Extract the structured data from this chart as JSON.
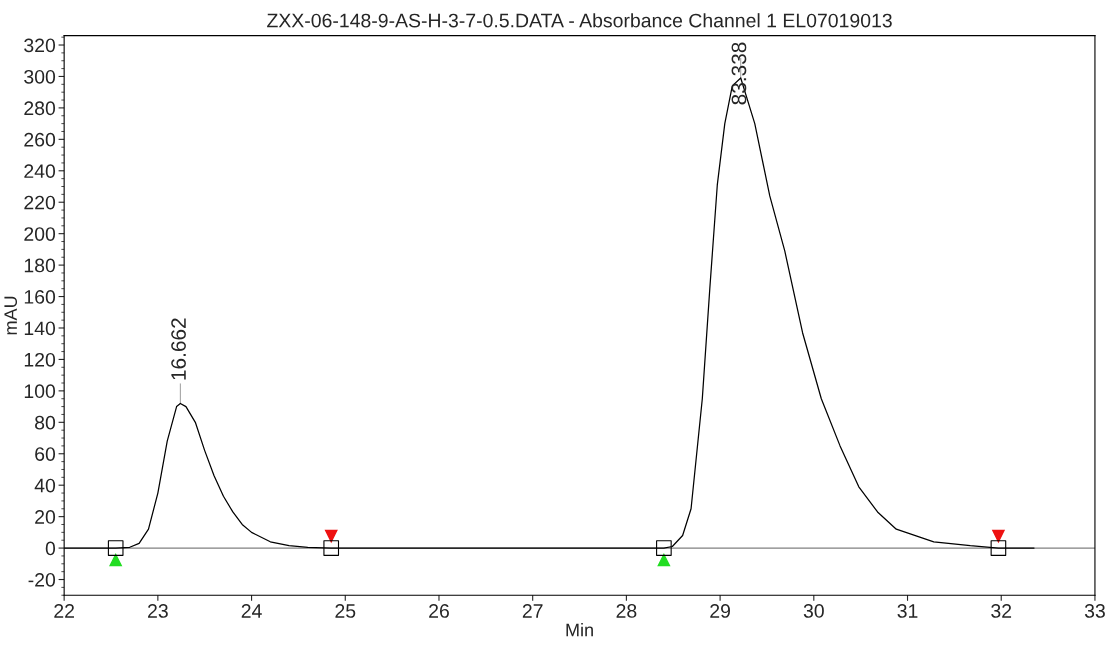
{
  "chart_data": {
    "type": "line",
    "title": "ZXX-06-148-9-AS-H-3-7-0.5.DATA - Absorbance Channel 1 EL07019013",
    "xlabel": "Min",
    "ylabel": "mAU",
    "xlim": [
      22,
      33
    ],
    "xticks": [
      22,
      23,
      24,
      25,
      26,
      27,
      28,
      29,
      30,
      31,
      32,
      33
    ],
    "ylim": [
      -30,
      326
    ],
    "yticks": [
      -20,
      0,
      20,
      40,
      60,
      80,
      100,
      120,
      140,
      160,
      180,
      200,
      220,
      240,
      260,
      280,
      300,
      320
    ],
    "grid": false,
    "legend": false,
    "series": [
      {
        "color": "#000000",
        "x": [
          22.0,
          22.55,
          22.7,
          22.8,
          22.9,
          23.0,
          23.1,
          23.2,
          23.24,
          23.3,
          23.4,
          23.5,
          23.6,
          23.7,
          23.8,
          23.9,
          24.0,
          24.2,
          24.4,
          24.6,
          24.85,
          26.0,
          28.0,
          28.4,
          28.49,
          28.6,
          28.69,
          28.81,
          28.89,
          28.97,
          29.05,
          29.13,
          29.22,
          29.37,
          29.53,
          29.69,
          29.88,
          30.08,
          30.28,
          30.48,
          30.68,
          30.88,
          31.28,
          31.67,
          31.97,
          32.35
        ],
        "values": [
          0,
          0,
          0.5,
          3,
          12,
          35,
          68,
          90,
          92,
          90,
          80,
          62,
          46,
          33,
          23,
          15,
          10,
          4,
          1.5,
          0.5,
          0,
          0,
          0,
          0,
          1,
          8,
          25,
          95,
          165,
          231,
          270,
          294,
          299,
          270,
          224,
          189,
          137,
          95,
          65,
          39,
          23,
          12,
          4,
          1.5,
          0,
          0
        ]
      },
      {
        "type": "scatter",
        "marker": "square",
        "color": "#000000",
        "x": [
          22.55,
          24.85,
          28.4,
          31.97
        ],
        "values": [
          0,
          0,
          0,
          0
        ]
      }
    ],
    "ref_lines": [
      {
        "axis": "y",
        "value": 0,
        "color": "#808080"
      }
    ],
    "annotations": [
      {
        "text": "16.662",
        "x": 23.24,
        "y": 92
      },
      {
        "text": "83.338",
        "x": 29.22,
        "y": 299
      }
    ]
  }
}
